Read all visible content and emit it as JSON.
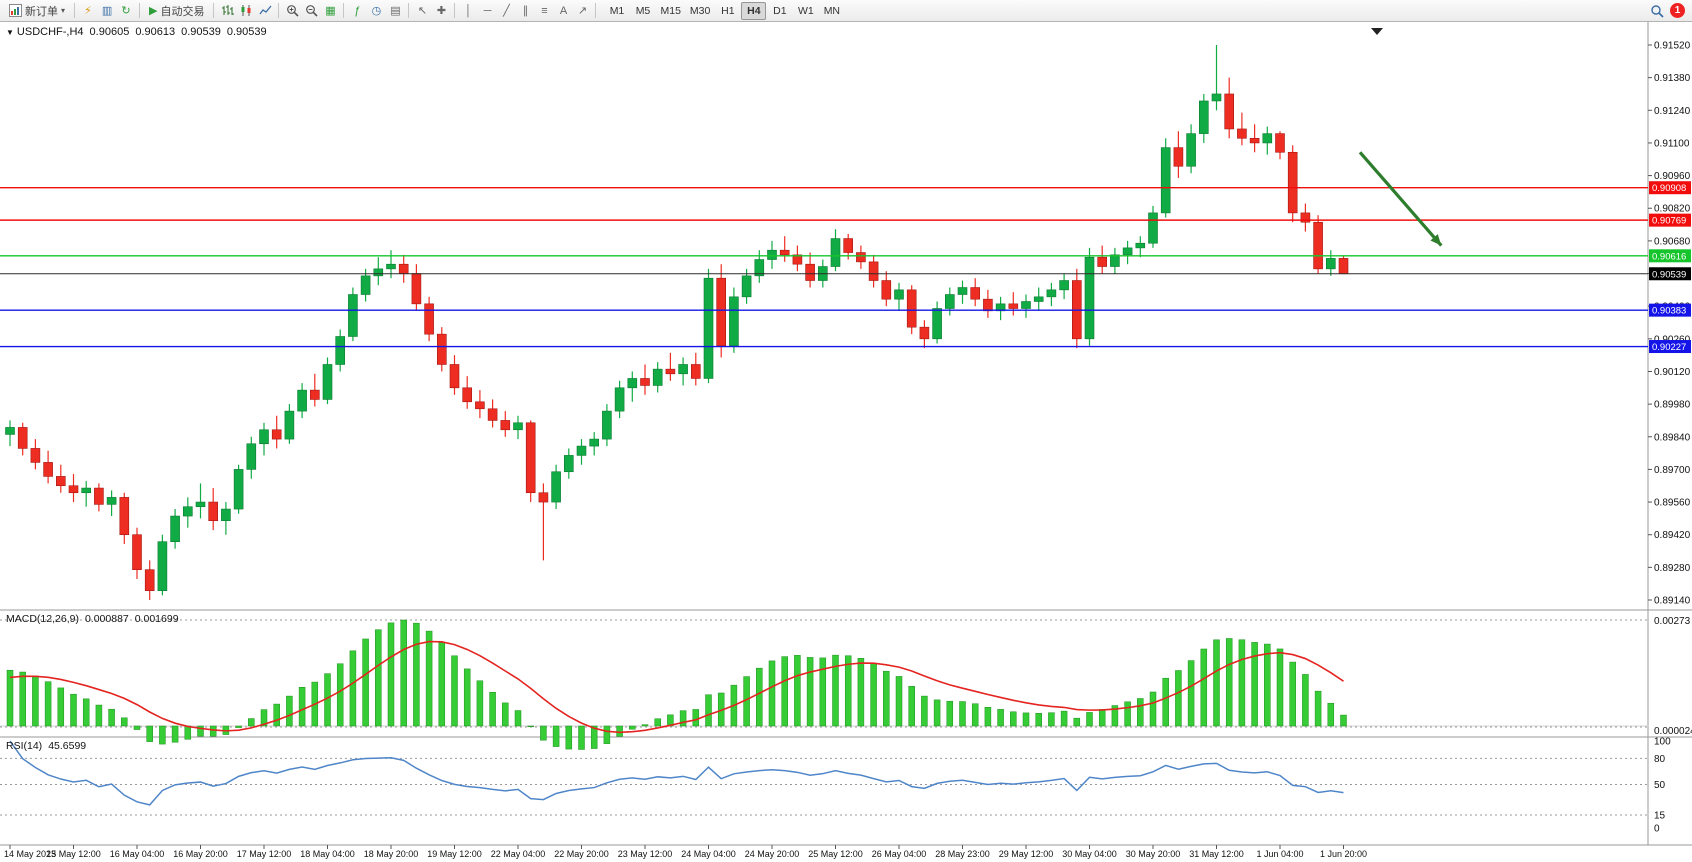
{
  "toolbar": {
    "new_order": "新订单",
    "auto_trading": "自动交易",
    "timeframes": [
      "M1",
      "M5",
      "M15",
      "M30",
      "H1",
      "H4",
      "D1",
      "W1",
      "MN"
    ],
    "active_timeframe": "H4",
    "notification_count": "1",
    "icon_glyphs": {
      "chevron_down": "▾",
      "lightning": "⚡",
      "history": "▥",
      "refresh": "↻",
      "play": "▶",
      "tile": "▦",
      "indicators": "ƒ",
      "clock": "◷",
      "template": "▤",
      "cursor": "↖",
      "crosshair": "✚",
      "vline": "│",
      "hline": "─",
      "trendline": "╱",
      "channel": "∥",
      "fibonacci": "≡",
      "text_tool": "A",
      "arrow_tool": "↗"
    }
  },
  "chart_header": {
    "symbol_period": "USDCHF-,H4",
    "open": "0.90605",
    "high": "0.90613",
    "low": "0.90539",
    "close": "0.90539"
  },
  "chart_data": [
    {
      "type": "candlestick",
      "title": "USDCHF-,H4",
      "x_label_step": 5,
      "x_labels": [
        "14 May 2023",
        "15 May 12:00",
        "16 May 04:00",
        "16 May 20:00",
        "17 May 12:00",
        "18 May 04:00",
        "18 May 20:00",
        "19 May 12:00",
        "22 May 04:00",
        "22 May 20:00",
        "23 May 12:00",
        "24 May 04:00",
        "24 May 20:00",
        "25 May 12:00",
        "26 May 04:00",
        "28 May 23:00",
        "29 May 12:00",
        "30 May 04:00",
        "30 May 20:00",
        "31 May 12:00",
        "1 Jun 04:00",
        "1 Jun 20:00"
      ],
      "y_ticks": [
        0.9152,
        0.9138,
        0.9124,
        0.911,
        0.9096,
        0.9082,
        0.9068,
        0.9054,
        0.904,
        0.9026,
        0.9012,
        0.8998,
        0.8984,
        0.897,
        0.8956,
        0.8942,
        0.8928,
        0.8914
      ],
      "colors": {
        "up": "#11ab45",
        "down": "#ee2d22",
        "up_edge": "#0a7a30",
        "down_edge": "#a31712"
      },
      "candles": [
        [
          0.8985,
          0.8991,
          0.898,
          0.8988
        ],
        [
          0.8988,
          0.899,
          0.8976,
          0.8979
        ],
        [
          0.8979,
          0.8983,
          0.897,
          0.8973
        ],
        [
          0.8973,
          0.8978,
          0.8964,
          0.8967
        ],
        [
          0.8967,
          0.8972,
          0.896,
          0.8963
        ],
        [
          0.8963,
          0.8968,
          0.8956,
          0.896
        ],
        [
          0.896,
          0.8965,
          0.8954,
          0.8962
        ],
        [
          0.8962,
          0.8964,
          0.8952,
          0.8955
        ],
        [
          0.8955,
          0.8961,
          0.895,
          0.8958
        ],
        [
          0.8958,
          0.896,
          0.8938,
          0.8942
        ],
        [
          0.8942,
          0.8945,
          0.8923,
          0.8927
        ],
        [
          0.8927,
          0.8931,
          0.8914,
          0.8918
        ],
        [
          0.8918,
          0.8942,
          0.8916,
          0.8939
        ],
        [
          0.8939,
          0.8953,
          0.8936,
          0.895
        ],
        [
          0.895,
          0.8958,
          0.8945,
          0.8954
        ],
        [
          0.8954,
          0.8964,
          0.8949,
          0.8956
        ],
        [
          0.8956,
          0.8962,
          0.8944,
          0.8948
        ],
        [
          0.8948,
          0.8956,
          0.8942,
          0.8953
        ],
        [
          0.8953,
          0.8972,
          0.8951,
          0.897
        ],
        [
          0.897,
          0.8984,
          0.8966,
          0.8981
        ],
        [
          0.8981,
          0.899,
          0.8976,
          0.8987
        ],
        [
          0.8987,
          0.8993,
          0.8979,
          0.8983
        ],
        [
          0.8983,
          0.8998,
          0.8981,
          0.8995
        ],
        [
          0.8995,
          0.9007,
          0.8992,
          0.9004
        ],
        [
          0.9004,
          0.9011,
          0.8997,
          0.9
        ],
        [
          0.9,
          0.9018,
          0.8998,
          0.9015
        ],
        [
          0.9015,
          0.903,
          0.9012,
          0.9027
        ],
        [
          0.9027,
          0.9048,
          0.9025,
          0.9045
        ],
        [
          0.9045,
          0.9056,
          0.9042,
          0.9053
        ],
        [
          0.9053,
          0.9061,
          0.9049,
          0.9056
        ],
        [
          0.9056,
          0.9064,
          0.9052,
          0.9058
        ],
        [
          0.9058,
          0.9062,
          0.905,
          0.9054
        ],
        [
          0.9054,
          0.9058,
          0.9038,
          0.9041
        ],
        [
          0.9041,
          0.9044,
          0.9025,
          0.9028
        ],
        [
          0.9028,
          0.9031,
          0.9012,
          0.9015
        ],
        [
          0.9015,
          0.9019,
          0.9002,
          0.9005
        ],
        [
          0.9005,
          0.901,
          0.8996,
          0.8999
        ],
        [
          0.8999,
          0.9004,
          0.8992,
          0.8996
        ],
        [
          0.8996,
          0.9,
          0.8988,
          0.8991
        ],
        [
          0.8991,
          0.8995,
          0.8984,
          0.8987
        ],
        [
          0.8987,
          0.8993,
          0.8983,
          0.899
        ],
        [
          0.899,
          0.8991,
          0.8956,
          0.896
        ],
        [
          0.896,
          0.8964,
          0.8931,
          0.8956
        ],
        [
          0.8956,
          0.8972,
          0.8953,
          0.8969
        ],
        [
          0.8969,
          0.8979,
          0.8966,
          0.8976
        ],
        [
          0.8976,
          0.8983,
          0.8972,
          0.898
        ],
        [
          0.898,
          0.8986,
          0.8976,
          0.8983
        ],
        [
          0.8983,
          0.8998,
          0.898,
          0.8995
        ],
        [
          0.8995,
          0.9008,
          0.8992,
          0.9005
        ],
        [
          0.9005,
          0.9012,
          0.8999,
          0.9009
        ],
        [
          0.9009,
          0.9015,
          0.9002,
          0.9006
        ],
        [
          0.9006,
          0.9016,
          0.9003,
          0.9013
        ],
        [
          0.9013,
          0.902,
          0.9008,
          0.9011
        ],
        [
          0.9011,
          0.9018,
          0.9006,
          0.9015
        ],
        [
          0.9015,
          0.902,
          0.9006,
          0.9009
        ],
        [
          0.9009,
          0.9056,
          0.9007,
          0.9052
        ],
        [
          0.9052,
          0.9058,
          0.9018,
          0.9023
        ],
        [
          0.9023,
          0.9048,
          0.902,
          0.9044
        ],
        [
          0.9044,
          0.9056,
          0.9041,
          0.9053
        ],
        [
          0.9053,
          0.9064,
          0.905,
          0.906
        ],
        [
          0.906,
          0.9068,
          0.9056,
          0.9064
        ],
        [
          0.9064,
          0.907,
          0.9059,
          0.9062
        ],
        [
          0.9062,
          0.9066,
          0.9055,
          0.9058
        ],
        [
          0.9058,
          0.9063,
          0.9048,
          0.9051
        ],
        [
          0.9051,
          0.906,
          0.9048,
          0.9057
        ],
        [
          0.9057,
          0.9073,
          0.9055,
          0.9069
        ],
        [
          0.9069,
          0.9071,
          0.906,
          0.9063
        ],
        [
          0.9063,
          0.9066,
          0.9056,
          0.9059
        ],
        [
          0.9059,
          0.9062,
          0.9048,
          0.9051
        ],
        [
          0.9051,
          0.9055,
          0.904,
          0.9043
        ],
        [
          0.9043,
          0.905,
          0.9038,
          0.9047
        ],
        [
          0.9047,
          0.9049,
          0.9028,
          0.9031
        ],
        [
          0.9031,
          0.9034,
          0.9022,
          0.9026
        ],
        [
          0.9026,
          0.9042,
          0.9024,
          0.9039
        ],
        [
          0.9039,
          0.9048,
          0.9036,
          0.9045
        ],
        [
          0.9045,
          0.9051,
          0.9041,
          0.9048
        ],
        [
          0.9048,
          0.9052,
          0.904,
          0.9043
        ],
        [
          0.9043,
          0.9047,
          0.9035,
          0.9038
        ],
        [
          0.9038,
          0.9044,
          0.9034,
          0.9041
        ],
        [
          0.9041,
          0.9046,
          0.9036,
          0.9039
        ],
        [
          0.9039,
          0.9045,
          0.9035,
          0.9042
        ],
        [
          0.9042,
          0.9048,
          0.9038,
          0.9044
        ],
        [
          0.9044,
          0.905,
          0.904,
          0.9047
        ],
        [
          0.9047,
          0.9054,
          0.9043,
          0.9051
        ],
        [
          0.9051,
          0.9056,
          0.9022,
          0.9026
        ],
        [
          0.9026,
          0.9065,
          0.9023,
          0.9061
        ],
        [
          0.9061,
          0.9066,
          0.9054,
          0.9057
        ],
        [
          0.9057,
          0.9065,
          0.9054,
          0.9062
        ],
        [
          0.9062,
          0.9068,
          0.9058,
          0.9065
        ],
        [
          0.9065,
          0.907,
          0.9061,
          0.9067
        ],
        [
          0.9067,
          0.9083,
          0.9065,
          0.908
        ],
        [
          0.908,
          0.9112,
          0.9078,
          0.9108
        ],
        [
          0.9108,
          0.9115,
          0.9095,
          0.91
        ],
        [
          0.91,
          0.9118,
          0.9097,
          0.9114
        ],
        [
          0.9114,
          0.9131,
          0.911,
          0.9128
        ],
        [
          0.9128,
          0.9152,
          0.9124,
          0.9131
        ],
        [
          0.9131,
          0.9138,
          0.9112,
          0.9116
        ],
        [
          0.9116,
          0.9123,
          0.9109,
          0.9112
        ],
        [
          0.9112,
          0.9118,
          0.9106,
          0.911
        ],
        [
          0.911,
          0.9117,
          0.9105,
          0.9114
        ],
        [
          0.9114,
          0.9115,
          0.9103,
          0.9106
        ],
        [
          0.9106,
          0.9109,
          0.9076,
          0.908
        ],
        [
          0.908,
          0.9084,
          0.9072,
          0.9076
        ],
        [
          0.9076,
          0.9079,
          0.9054,
          0.9056
        ],
        [
          0.9056,
          0.9064,
          0.9053,
          0.90605
        ],
        [
          0.90605,
          0.90613,
          0.90539,
          0.90539
        ]
      ],
      "hlines": [
        {
          "price": 0.90908,
          "label": "0.90908",
          "color": "#f20d0d",
          "type": "resistance"
        },
        {
          "price": 0.90769,
          "label": "0.90769",
          "color": "#f20d0d",
          "type": "resistance"
        },
        {
          "price": 0.90616,
          "label": "0.90616",
          "color": "#16c52b",
          "type": "support"
        },
        {
          "price": 0.90539,
          "label": "0.90539",
          "color": "#2b2b2b",
          "type": "bid"
        },
        {
          "price": 0.90383,
          "label": "0.90383",
          "color": "#1414e8",
          "type": "support"
        },
        {
          "price": 0.90227,
          "label": "0.90227",
          "color": "#1414e8",
          "type": "support"
        }
      ],
      "arrow_annotation": {
        "from_index": 106.3,
        "from_price": 0.9106,
        "to_index": 112.7,
        "to_price": 0.9066,
        "color": "#2d7d2d"
      }
    },
    {
      "type": "macd",
      "label": "MACD(12,26,9)",
      "params": [
        12,
        26,
        9
      ],
      "value_main": "0.000887",
      "value_signal": "0.001699",
      "y_axis_labels": [
        "0.00273",
        "0.000024"
      ],
      "histogram_color": "#35cc35",
      "signal_color": "#e42420"
    },
    {
      "type": "rsi",
      "label": "RSI(14)",
      "period": 14,
      "value": "45.6599",
      "levels": [
        80,
        50,
        15
      ],
      "y_axis_labels": [
        "100",
        "80",
        "50",
        "15",
        "0"
      ],
      "line_color": "#4f86c9"
    }
  ]
}
